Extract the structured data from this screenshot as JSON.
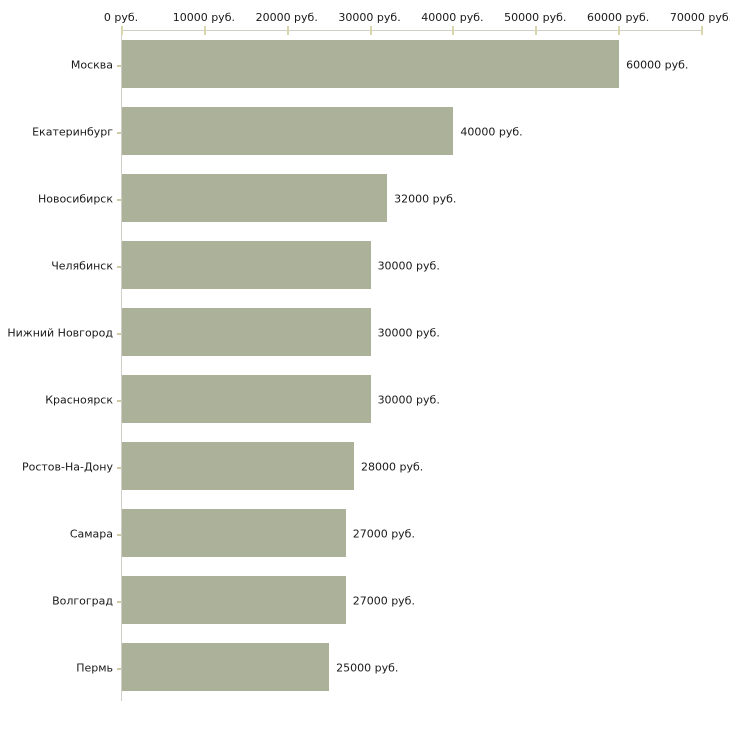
{
  "chart_data": {
    "type": "bar",
    "orientation": "horizontal",
    "title": "",
    "xlabel": "",
    "ylabel": "",
    "xlim": [
      0,
      70000
    ],
    "x_ticks": [
      0,
      10000,
      20000,
      30000,
      40000,
      50000,
      60000,
      70000
    ],
    "x_tick_labels": [
      "0 руб.",
      "10000 руб.",
      "20000 руб.",
      "30000 руб.",
      "40000 руб.",
      "50000 руб.",
      "60000 руб.",
      "70000 руб."
    ],
    "categories": [
      "Москва",
      "Екатеринбург",
      "Новосибирск",
      "Челябинск",
      "Нижний Новгород",
      "Красноярск",
      "Ростов-На-Дону",
      "Самара",
      "Волгоград",
      "Пермь"
    ],
    "values": [
      60000,
      40000,
      32000,
      30000,
      30000,
      30000,
      28000,
      27000,
      27000,
      25000
    ],
    "value_labels": [
      "60000 руб.",
      "40000 руб.",
      "32000 руб.",
      "30000 руб.",
      "30000 руб.",
      "30000 руб.",
      "28000 руб.",
      "27000 руб.",
      "27000 руб.",
      "25000 руб."
    ],
    "grid": false,
    "legend": null,
    "colors": {
      "bar": "#acb299",
      "axis_line": "#cfcfc8",
      "axis_tick": "#d9d6ae",
      "category_tick": "#cfcba6",
      "text": "#1a1a1a",
      "background": "#ffffff"
    }
  }
}
